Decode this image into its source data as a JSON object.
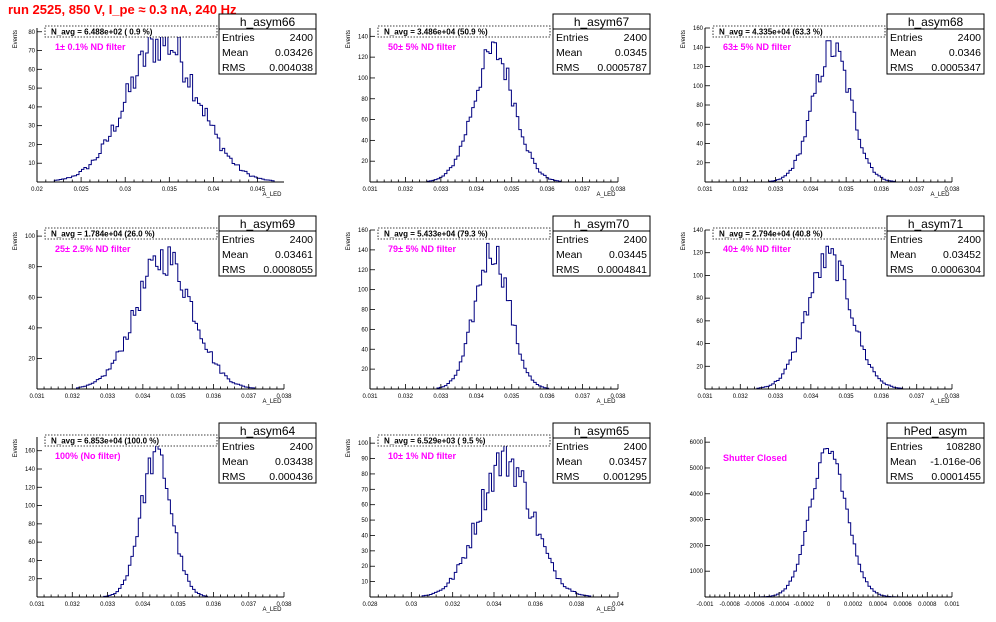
{
  "page_title": "run 2525,   850 V, I_pe ≈ 0.3 nA, 240 Hz",
  "colors": {
    "title": "#ff0000",
    "histogram": "#000080",
    "annotation": "#ff00ff"
  },
  "stat_labels": {
    "entries": "Entries",
    "mean": "Mean",
    "rms": "RMS"
  },
  "chart_data": [
    {
      "type": "histogram",
      "name": "h_asym66",
      "navg": "N_avg = 6.488e+02 ( 0.9 %)",
      "filter": "1± 0.1% ND filter",
      "entries": "2400",
      "mean": "0.03426",
      "rms": "0.004038",
      "mean_val": 0.03426,
      "rms_val": 0.004038,
      "xlim": [
        0.02,
        0.048
      ],
      "xticks": [
        0.02,
        0.025,
        0.03,
        0.035,
        0.04,
        0.045
      ],
      "xtick_labels": [
        "0.02",
        "0.025",
        "0.03",
        "0.035",
        "0.04",
        "0.045"
      ],
      "ylim": [
        0,
        82
      ],
      "yticks": [
        10,
        20,
        30,
        40,
        50,
        60,
        70,
        80
      ],
      "ytick_labels": [
        "10",
        "20",
        "30",
        "40",
        "50",
        "60",
        "70",
        "80"
      ],
      "xlabel": "A_LED",
      "ylabel": "Events",
      "peak": 75,
      "noise": 0.16
    },
    {
      "type": "histogram",
      "name": "h_asym67",
      "navg": "N_avg = 3.486e+04 (50.9 %)",
      "filter": "50± 5% ND filter",
      "entries": "2400",
      "mean": "0.0345",
      "rms": "0.0005787",
      "mean_val": 0.0345,
      "rms_val": 0.0005787,
      "xlim": [
        0.031,
        0.038
      ],
      "xticks": [
        0.031,
        0.032,
        0.033,
        0.034,
        0.035,
        0.036,
        0.037,
        0.038
      ],
      "xtick_labels": [
        "0.031",
        "0.032",
        "0.033",
        "0.034",
        "0.035",
        "0.036",
        "0.037",
        "0.038"
      ],
      "ylim": [
        0,
        148
      ],
      "yticks": [
        20,
        40,
        60,
        80,
        100,
        120,
        140
      ],
      "ytick_labels": [
        "20",
        "40",
        "60",
        "80",
        "100",
        "120",
        "140"
      ],
      "xlabel": "A_LED",
      "ylabel": "Events",
      "peak": 125,
      "noise": 0.12
    },
    {
      "type": "histogram",
      "name": "h_asym68",
      "navg": "N_avg = 4.335e+04 (63.3 %)",
      "filter": "63± 5% ND filter",
      "entries": "2400",
      "mean": "0.0346",
      "rms": "0.0005347",
      "mean_val": 0.0346,
      "rms_val": 0.0005347,
      "xlim": [
        0.031,
        0.038
      ],
      "xticks": [
        0.031,
        0.032,
        0.033,
        0.034,
        0.035,
        0.036,
        0.037,
        0.038
      ],
      "xtick_labels": [
        "0.031",
        "0.032",
        "0.033",
        "0.034",
        "0.035",
        "0.036",
        "0.037",
        "0.038"
      ],
      "ylim": [
        0,
        160
      ],
      "yticks": [
        20,
        40,
        60,
        80,
        100,
        120,
        140,
        160
      ],
      "ytick_labels": [
        "20",
        "40",
        "60",
        "80",
        "100",
        "120",
        "140",
        "160"
      ],
      "xlabel": "A_LED",
      "ylabel": "Events",
      "peak": 138,
      "noise": 0.12
    },
    {
      "type": "histogram",
      "name": "h_asym69",
      "navg": "N_avg = 1.784e+04 (26.0 %)",
      "filter": "25± 2.5% ND filter",
      "entries": "2400",
      "mean": "0.03461",
      "rms": "0.0008055",
      "mean_val": 0.03461,
      "rms_val": 0.0008055,
      "xlim": [
        0.031,
        0.038
      ],
      "xticks": [
        0.031,
        0.032,
        0.033,
        0.034,
        0.035,
        0.036,
        0.037,
        0.038
      ],
      "xtick_labels": [
        "0.031",
        "0.032",
        "0.033",
        "0.034",
        "0.035",
        "0.036",
        "0.037",
        "0.038"
      ],
      "ylim": [
        0,
        104
      ],
      "yticks": [
        20,
        40,
        60,
        80,
        100
      ],
      "ytick_labels": [
        "20",
        "40",
        "60",
        "80",
        "100"
      ],
      "xlabel": "A_LED",
      "ylabel": "Events",
      "peak": 86,
      "noise": 0.14
    },
    {
      "type": "histogram",
      "name": "h_asym70",
      "navg": "N_avg = 5.433e+04 (79.3 %)",
      "filter": "79± 5% ND filter",
      "entries": "2400",
      "mean": "0.03445",
      "rms": "0.0004841",
      "mean_val": 0.03445,
      "rms_val": 0.0004841,
      "xlim": [
        0.031,
        0.038
      ],
      "xticks": [
        0.031,
        0.032,
        0.033,
        0.034,
        0.035,
        0.036,
        0.037,
        0.038
      ],
      "xtick_labels": [
        "0.031",
        "0.032",
        "0.033",
        "0.034",
        "0.035",
        "0.036",
        "0.037",
        "0.038"
      ],
      "ylim": [
        0,
        160
      ],
      "yticks": [
        20,
        40,
        60,
        80,
        100,
        120,
        140,
        160
      ],
      "ytick_labels": [
        "20",
        "40",
        "60",
        "80",
        "100",
        "120",
        "140",
        "160"
      ],
      "xlabel": "A_LED",
      "ylabel": "Events",
      "peak": 140,
      "noise": 0.12
    },
    {
      "type": "histogram",
      "name": "h_asym71",
      "navg": "N_avg = 2.794e+04 (40.8 %)",
      "filter": "40± 4% ND filter",
      "entries": "2400",
      "mean": "0.03452",
      "rms": "0.0006304",
      "mean_val": 0.03452,
      "rms_val": 0.0006304,
      "xlim": [
        0.031,
        0.038
      ],
      "xticks": [
        0.031,
        0.032,
        0.033,
        0.034,
        0.035,
        0.036,
        0.037,
        0.038
      ],
      "xtick_labels": [
        "0.031",
        "0.032",
        "0.033",
        "0.034",
        "0.035",
        "0.036",
        "0.037",
        "0.038"
      ],
      "ylim": [
        0,
        140
      ],
      "yticks": [
        20,
        40,
        60,
        80,
        100,
        120,
        140
      ],
      "ytick_labels": [
        "20",
        "40",
        "60",
        "80",
        "100",
        "120",
        "140"
      ],
      "xlabel": "A_LED",
      "ylabel": "Events",
      "peak": 115,
      "noise": 0.12
    },
    {
      "type": "histogram",
      "name": "h_asym64",
      "navg": "N_avg = 6.853e+04 (100.0 %)",
      "filter": "100% (No filter)",
      "entries": "2400",
      "mean": "0.03438",
      "rms": "0.000436",
      "mean_val": 0.03438,
      "rms_val": 0.000436,
      "xlim": [
        0.031,
        0.038
      ],
      "xticks": [
        0.031,
        0.032,
        0.033,
        0.034,
        0.035,
        0.036,
        0.037,
        0.038
      ],
      "xtick_labels": [
        "0.031",
        "0.032",
        "0.033",
        "0.034",
        "0.035",
        "0.036",
        "0.037",
        "0.038"
      ],
      "ylim": [
        0,
        175
      ],
      "yticks": [
        20,
        40,
        60,
        80,
        100,
        120,
        140,
        160
      ],
      "ytick_labels": [
        "20",
        "40",
        "60",
        "80",
        "100",
        "120",
        "140",
        "160"
      ],
      "xlabel": "A_LED",
      "ylabel": "Events",
      "peak": 155,
      "noise": 0.12
    },
    {
      "type": "histogram",
      "name": "h_asym65",
      "navg": "N_avg = 6.529e+03 ( 9.5 %)",
      "filter": "10± 1% ND filter",
      "entries": "2400",
      "mean": "0.03457",
      "rms": "0.001295",
      "mean_val": 0.03457,
      "rms_val": 0.001295,
      "xlim": [
        0.028,
        0.04
      ],
      "xticks": [
        0.028,
        0.03,
        0.032,
        0.034,
        0.036,
        0.038,
        0.04
      ],
      "xtick_labels": [
        "0.028",
        "0.03",
        "0.032",
        "0.034",
        "0.036",
        "0.038",
        "0.04"
      ],
      "ylim": [
        0,
        104
      ],
      "yticks": [
        10,
        20,
        30,
        40,
        50,
        60,
        70,
        80,
        90,
        100
      ],
      "ytick_labels": [
        "10",
        "20",
        "30",
        "40",
        "50",
        "60",
        "70",
        "80",
        "90",
        "100"
      ],
      "xlabel": "A_LED",
      "ylabel": "Events",
      "peak": 90,
      "noise": 0.16
    },
    {
      "type": "histogram",
      "name": "hPed_asym",
      "navg": "",
      "filter": "Shutter Closed",
      "entries": "108280",
      "mean": "-1.016e-06",
      "rms": "0.0001455",
      "mean_val": -1.016e-06,
      "rms_val": 0.0001455,
      "xlim": [
        -0.001,
        0.001
      ],
      "xticks": [
        -0.001,
        -0.0008,
        -0.0006,
        -0.0004,
        -0.0002,
        0,
        0.0002,
        0.0004,
        0.0006,
        0.0008,
        0.001
      ],
      "xtick_labels": [
        "-0.001",
        "-0.0008",
        "-0.0006",
        "-0.0004",
        "-0.0002",
        "0",
        "0.0002",
        "0.0004",
        "0.0006",
        "0.0008",
        "0.001"
      ],
      "ylim": [
        0,
        6200
      ],
      "yticks": [
        1000,
        2000,
        3000,
        4000,
        5000,
        6000
      ],
      "ytick_labels": [
        "1000",
        "2000",
        "3000",
        "4000",
        "5000",
        "6000"
      ],
      "xlabel": "",
      "ylabel": "",
      "peak": 5700,
      "noise": 0.04
    }
  ]
}
